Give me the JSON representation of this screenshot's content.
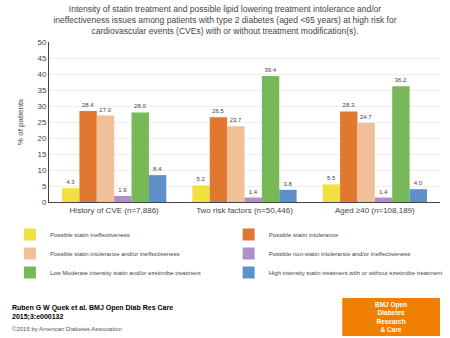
{
  "chart_data": {
    "type": "bar",
    "title": "Intensity of statin treatment and possible lipid lowering treatment intolerance and/or\nineffectiveness issues among patients with type 2 diabetes (aged <65 years) at high risk for\ncardiovascular events (CVEs) with or without treatment modification(s).",
    "categories": [
      "History of CVE (n=7,886)",
      "Two risk factors (n=50,446)",
      "Aged ≥40 (n=108,189)"
    ],
    "series": [
      {
        "name": "Possible statin ineffectiveness",
        "color": "#f0e040",
        "values": [
          4.3,
          5.2,
          5.5
        ],
        "value_labels": [
          "4.3",
          "5.2",
          "5.5"
        ]
      },
      {
        "name": "Possible statin intolerance",
        "color": "#e07830",
        "values": [
          28.4,
          26.5,
          28.3
        ],
        "value_labels": [
          "28.4",
          "26.5",
          "28.3"
        ]
      },
      {
        "name": "Possible statin intolerance and/or ineffectiveness",
        "color": "#f0c098",
        "values": [
          27.0,
          23.7,
          24.7
        ],
        "value_labels": [
          "27.0",
          "23.7",
          "24.7"
        ]
      },
      {
        "name": "Possible non-statin intolerance and/or ineffectiveness",
        "color": "#b090c8",
        "values": [
          1.9,
          1.4,
          1.4
        ],
        "value_labels": [
          "1.9",
          "1.4",
          "1.4"
        ]
      },
      {
        "name": "Low Moderate intensity statin and/or ezetimibe treatment",
        "color": "#78b858",
        "values": [
          28.0,
          39.4,
          36.2
        ],
        "value_labels": [
          "28.0",
          "39.4",
          "36.2"
        ]
      },
      {
        "name": "High intensity statin treatment with or without ezetimibe treatment",
        "color": "#6090c8",
        "values": [
          8.4,
          3.8,
          4.0
        ],
        "value_labels": [
          "8.4",
          "3.8",
          "4.0"
        ]
      }
    ],
    "ylabel": "% of patients",
    "ylim": [
      0,
      50
    ],
    "yticks": [
      0,
      5,
      10,
      15,
      20,
      25,
      30,
      35,
      40,
      45,
      50
    ],
    "grid": true,
    "data_labels": true,
    "legend": "bottom",
    "annotations": [
      {
        "text": "Ruben G W Quek et al. BMJ Open Diab Res Care\n2015;3:e000132"
      },
      {
        "text": "©2015 by American Diabetes Association"
      },
      {
        "text": "BMJ Open\nDiabetes\nResearch\n& Care",
        "color": "#f07f00"
      }
    ]
  }
}
